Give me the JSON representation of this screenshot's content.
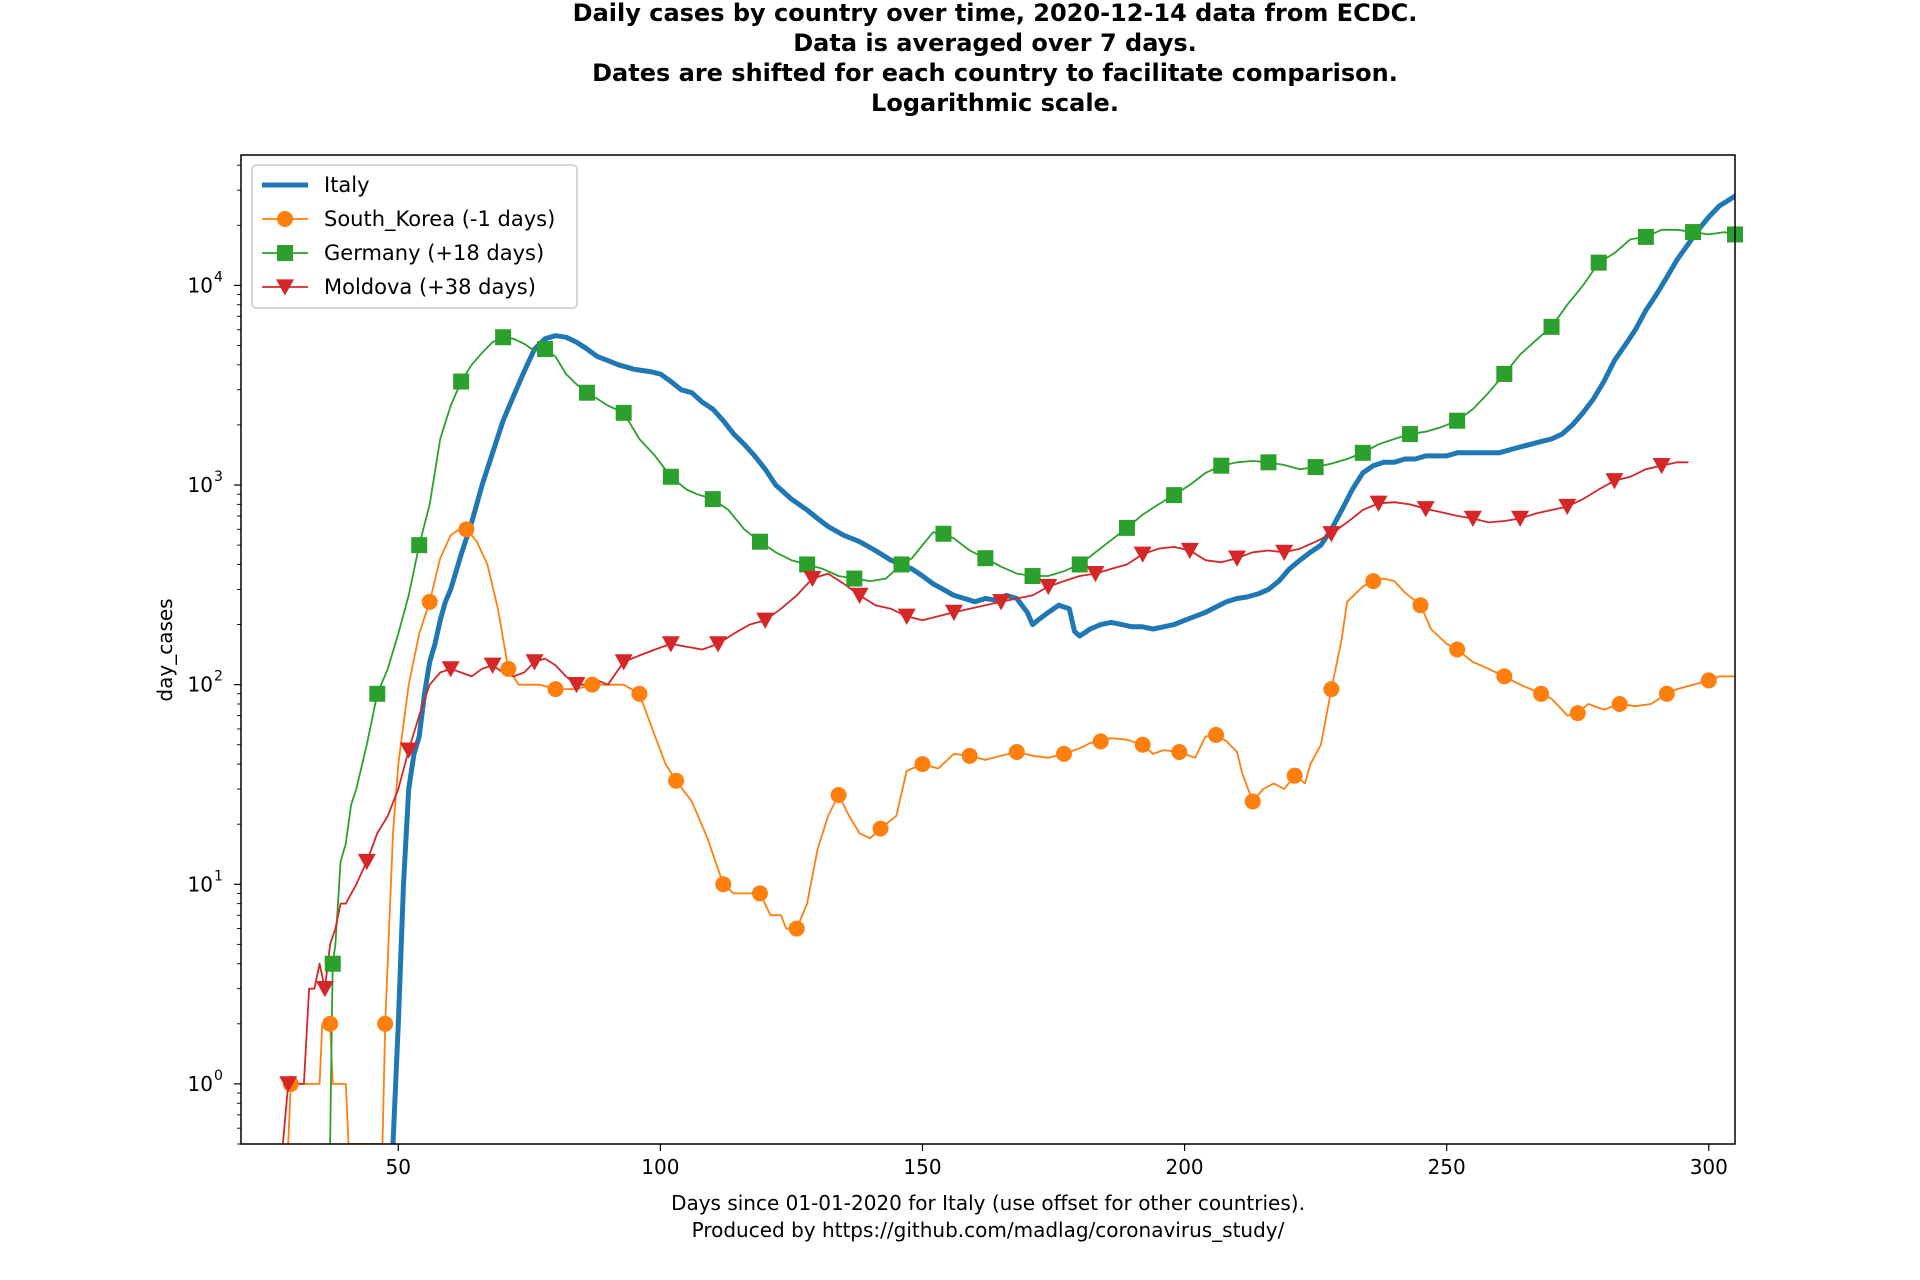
{
  "chart_data": {
    "type": "line",
    "title_lines": [
      "Daily cases by country over time, 2020-12-14 data from ECDC.",
      "Data is averaged over 7 days.",
      "Dates are shifted for each country to facilitate comparison.",
      "Logarithmic scale."
    ],
    "xlabel_lines": [
      "Days since 01-01-2020 for Italy (use offset for other countries).",
      "Produced by https://github.com/madlag/coronavirus_study/"
    ],
    "ylabel": "day_cases",
    "x_scale": "linear",
    "y_scale": "log",
    "xlim": [
      20,
      305
    ],
    "ylim": [
      0.5,
      45000
    ],
    "x_ticks": [
      50,
      100,
      150,
      200,
      250,
      300
    ],
    "y_ticks": [
      {
        "value": 1,
        "base": "10",
        "exp": "0"
      },
      {
        "value": 10,
        "base": "10",
        "exp": "1"
      },
      {
        "value": 100,
        "base": "10",
        "exp": "2"
      },
      {
        "value": 1000,
        "base": "10",
        "exp": "3"
      },
      {
        "value": 10000,
        "base": "10",
        "exp": "4"
      }
    ],
    "grid": false,
    "legend_position": "top-left",
    "series": [
      {
        "name": "Italy",
        "color": "#1f77b4",
        "marker": "none",
        "line_width": "thick",
        "x": [
          49,
          50,
          51,
          52,
          53,
          54,
          55,
          56,
          57,
          58,
          59,
          60,
          62,
          64,
          66,
          68,
          70,
          72,
          74,
          76,
          78,
          80,
          82,
          84,
          86,
          88,
          90,
          92,
          95,
          98,
          100,
          102,
          104,
          106,
          108,
          110,
          112,
          114,
          116,
          118,
          120,
          122,
          125,
          128,
          130,
          132,
          135,
          138,
          141,
          144,
          146,
          148,
          150,
          152,
          154,
          156,
          158,
          160,
          162,
          164,
          166,
          168,
          170,
          171,
          172,
          174,
          176,
          178,
          179,
          180,
          182,
          184,
          186,
          188,
          190,
          192,
          194,
          196,
          198,
          200,
          202,
          204,
          206,
          208,
          210,
          212,
          214,
          216,
          218,
          220,
          222,
          224,
          226,
          228,
          230,
          232,
          234,
          236,
          238,
          240,
          242,
          244,
          246,
          248,
          250,
          252,
          254,
          256,
          258,
          260,
          262,
          264,
          266,
          268,
          270,
          272,
          274,
          276,
          278,
          280,
          282,
          284,
          286,
          288,
          290,
          292,
          294,
          296,
          298,
          300,
          302,
          305
        ],
        "y": [
          0.5,
          2,
          10,
          30,
          45,
          55,
          90,
          130,
          160,
          210,
          260,
          300,
          450,
          650,
          1000,
          1450,
          2100,
          2800,
          3700,
          4800,
          5400,
          5600,
          5500,
          5200,
          4800,
          4400,
          4200,
          4000,
          3800,
          3700,
          3600,
          3300,
          3000,
          2900,
          2600,
          2400,
          2100,
          1800,
          1600,
          1400,
          1200,
          1000,
          850,
          750,
          680,
          620,
          560,
          520,
          470,
          420,
          400,
          380,
          350,
          320,
          300,
          280,
          270,
          260,
          270,
          265,
          280,
          270,
          230,
          200,
          210,
          230,
          250,
          240,
          185,
          175,
          190,
          200,
          205,
          200,
          195,
          195,
          190,
          195,
          200,
          210,
          220,
          230,
          245,
          260,
          270,
          275,
          285,
          300,
          330,
          380,
          420,
          460,
          500,
          600,
          750,
          950,
          1150,
          1250,
          1300,
          1300,
          1350,
          1350,
          1400,
          1400,
          1400,
          1450,
          1450,
          1450,
          1450,
          1450,
          1500,
          1550,
          1600,
          1650,
          1700,
          1800,
          2000,
          2300,
          2700,
          3300,
          4200,
          5000,
          6000,
          7500,
          9000,
          11000,
          13500,
          16000,
          19000,
          22000,
          25000,
          28000
        ]
      },
      {
        "name": "South_Korea (-1 days)",
        "color": "#ff7f0e",
        "marker": "circle",
        "x": [
          29,
          29.5,
          35,
          35.5,
          37,
          37.5,
          40,
          40.5,
          47,
          47.5,
          49,
          50,
          52,
          54,
          56,
          58,
          60,
          62,
          63,
          65,
          67,
          69,
          71,
          73,
          75,
          77,
          80,
          84,
          87,
          90,
          93,
          96,
          99,
          101,
          103,
          106,
          109,
          112,
          114,
          117,
          119,
          121,
          123,
          124,
          126,
          128,
          130,
          132,
          134,
          136,
          138,
          140,
          142,
          145,
          147,
          150,
          153,
          156,
          159,
          162,
          165,
          168,
          171,
          174,
          177,
          180,
          182,
          184,
          186,
          189,
          192,
          194,
          196,
          199,
          202,
          204,
          206,
          208,
          210,
          211,
          213,
          215,
          217,
          219,
          221,
          223,
          224,
          226,
          228,
          230,
          231,
          234,
          236,
          238,
          240,
          242,
          245,
          247,
          250,
          252,
          255,
          258,
          261,
          264,
          266,
          268,
          270,
          272,
          273,
          275,
          277,
          280,
          283,
          286,
          289,
          292,
          294,
          297,
          300,
          302,
          305
        ],
        "y": [
          0.5,
          1,
          1,
          2,
          2,
          1,
          1,
          0.5,
          0.5,
          2,
          18,
          40,
          100,
          180,
          260,
          430,
          560,
          610,
          600,
          520,
          400,
          240,
          120,
          100,
          100,
          100,
          95,
          95,
          100,
          100,
          100,
          90,
          55,
          40,
          33,
          26,
          17,
          10,
          9,
          9,
          9,
          7,
          7,
          6,
          6,
          8,
          15,
          22,
          28,
          22,
          18,
          17,
          19,
          22,
          37,
          40,
          38,
          45,
          44,
          42,
          44,
          46,
          44,
          43,
          45,
          48,
          51,
          52,
          54,
          53,
          50,
          45,
          47,
          46,
          43,
          55,
          56,
          52,
          46,
          36,
          26,
          30,
          32,
          30,
          35,
          32,
          40,
          50,
          95,
          170,
          260,
          310,
          330,
          340,
          330,
          290,
          250,
          190,
          160,
          150,
          130,
          120,
          110,
          100,
          95,
          90,
          85,
          75,
          70,
          72,
          80,
          75,
          80,
          78,
          80,
          90,
          95,
          100,
          105,
          110,
          110
        ]
      },
      {
        "name": "Germany (+18 days)",
        "color": "#2ca02c",
        "marker": "square",
        "x": [
          37,
          37.5,
          38,
          39,
          40,
          41,
          42,
          44,
          46,
          48,
          50,
          52,
          54,
          56,
          58,
          60,
          62,
          64,
          66,
          68,
          70,
          72,
          74,
          76,
          78,
          80,
          82,
          84,
          86,
          88,
          90,
          93,
          96,
          99,
          102,
          105,
          107,
          110,
          113,
          116,
          119,
          122,
          125,
          128,
          131,
          134,
          137,
          140,
          143,
          146,
          148,
          150,
          152,
          154,
          156,
          159,
          162,
          165,
          168,
          171,
          174,
          177,
          180,
          183,
          186,
          189,
          192,
          195,
          198,
          201,
          204,
          207,
          210,
          213,
          216,
          219,
          222,
          225,
          228,
          231,
          234,
          237,
          240,
          243,
          246,
          249,
          252,
          255,
          258,
          261,
          264,
          267,
          270,
          273,
          276,
          279,
          282,
          285,
          288,
          291,
          294,
          297,
          300,
          303,
          305
        ],
        "y": [
          0.5,
          4,
          5,
          13,
          16,
          25,
          30,
          50,
          90,
          120,
          180,
          280,
          500,
          800,
          1700,
          2500,
          3300,
          4000,
          4600,
          5200,
          5500,
          5400,
          5100,
          4700,
          4800,
          4400,
          3600,
          3200,
          2900,
          2700,
          2500,
          2300,
          1700,
          1400,
          1100,
          950,
          900,
          850,
          750,
          600,
          520,
          460,
          420,
          400,
          380,
          350,
          340,
          330,
          340,
          400,
          430,
          500,
          580,
          570,
          540,
          470,
          430,
          390,
          360,
          350,
          350,
          370,
          400,
          460,
          530,
          610,
          710,
          800,
          890,
          1000,
          1150,
          1250,
          1300,
          1320,
          1300,
          1260,
          1200,
          1230,
          1280,
          1350,
          1450,
          1600,
          1700,
          1800,
          1850,
          1950,
          2100,
          2400,
          2900,
          3600,
          4500,
          5300,
          6200,
          8000,
          10000,
          13000,
          14500,
          17000,
          17500,
          19000,
          19000,
          18500,
          18000,
          18500,
          18000
        ]
      },
      {
        "name": "Moldova (+38 days)",
        "color": "#d62728",
        "marker": "triangle_down",
        "x": [
          28,
          29,
          30,
          31,
          32,
          33,
          34,
          35,
          36,
          37,
          38,
          39,
          40,
          42,
          44,
          46,
          48,
          50,
          52,
          54,
          56,
          58,
          60,
          62,
          64,
          66,
          68,
          70,
          72,
          74,
          76,
          78,
          80,
          82,
          84,
          86,
          88,
          90,
          93,
          96,
          99,
          102,
          105,
          108,
          111,
          114,
          117,
          120,
          123,
          126,
          129,
          132,
          135,
          138,
          141,
          144,
          147,
          150,
          153,
          156,
          159,
          162,
          165,
          168,
          171,
          174,
          177,
          180,
          183,
          186,
          189,
          192,
          195,
          198,
          201,
          204,
          207,
          210,
          213,
          216,
          219,
          222,
          225,
          228,
          231,
          234,
          237,
          240,
          243,
          246,
          249,
          252,
          255,
          258,
          261,
          264,
          267,
          270,
          273,
          276,
          279,
          282,
          285,
          288,
          291,
          294,
          296
        ],
        "y": [
          0.5,
          1,
          1,
          1,
          1,
          3,
          3,
          4,
          3,
          5,
          6,
          8,
          8,
          10,
          13,
          18,
          22,
          30,
          47,
          70,
          100,
          115,
          120,
          115,
          110,
          120,
          125,
          115,
          110,
          115,
          130,
          135,
          125,
          110,
          100,
          100,
          105,
          100,
          130,
          140,
          150,
          160,
          155,
          150,
          160,
          180,
          200,
          210,
          240,
          280,
          340,
          360,
          320,
          280,
          250,
          240,
          220,
          210,
          220,
          230,
          240,
          250,
          260,
          270,
          280,
          310,
          330,
          350,
          360,
          380,
          400,
          450,
          480,
          490,
          470,
          420,
          410,
          430,
          460,
          470,
          460,
          480,
          520,
          570,
          650,
          750,
          810,
          820,
          800,
          760,
          730,
          700,
          680,
          650,
          660,
          680,
          720,
          750,
          780,
          850,
          950,
          1050,
          1100,
          1200,
          1250,
          1300,
          1300
        ]
      }
    ]
  }
}
